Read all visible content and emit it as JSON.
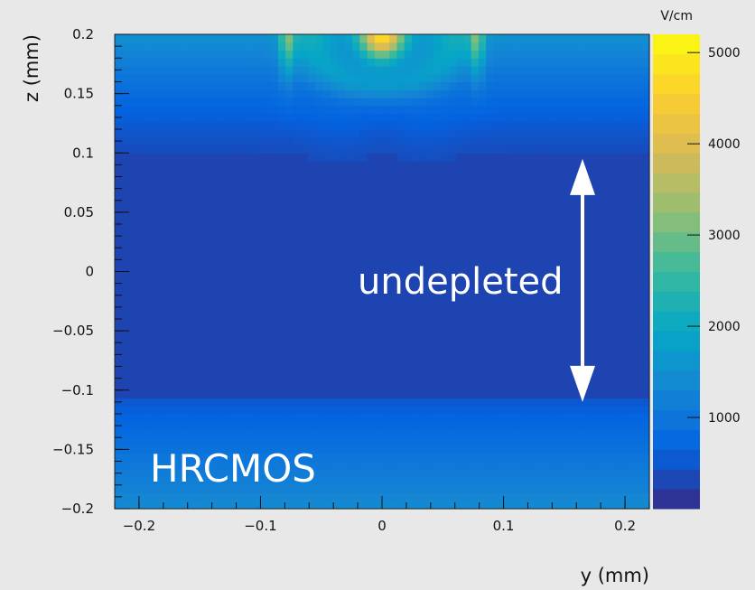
{
  "chart_data": {
    "type": "heatmap",
    "title": "",
    "xlabel": "y (mm)",
    "ylabel": "z (mm)",
    "colorbar_unit": "V/cm",
    "xlim": [
      -0.22,
      0.22
    ],
    "ylim": [
      -0.2,
      0.2
    ],
    "zlim": [
      0,
      5200
    ],
    "x_ticks": [
      -0.2,
      -0.1,
      0,
      0.1,
      0.2
    ],
    "x_tick_labels": [
      "−0.2",
      "−0.1",
      "0",
      "0.1",
      "0.2"
    ],
    "y_ticks": [
      0.2,
      0.15,
      0.1,
      0.05,
      0,
      -0.05,
      -0.1,
      -0.15,
      -0.2
    ],
    "y_tick_labels": [
      "0.2",
      "0.15",
      "0.1",
      "0.05",
      "0",
      "−0.05",
      "−0.1",
      "−0.15",
      "−0.2"
    ],
    "colorbar_ticks": [
      5000,
      4000,
      3000,
      2000,
      1000
    ],
    "colorbar_tick_labels": [
      "5000",
      "4000",
      "3000",
      "2000",
      "1000"
    ],
    "annotations": [
      {
        "text": "undepleted",
        "color": "#ffffff"
      },
      {
        "text": "HRCMOS",
        "color": "#ffffff"
      }
    ],
    "undepleted_region_z": [
      -0.11,
      0.095
    ],
    "field_description": {
      "undepleted_field": 300,
      "top_surface_field": 1500,
      "bottom_surface_field": 1300,
      "peak_field": 5000
    },
    "grid": false,
    "colormap": [
      "#352a87",
      "#0363e1",
      "#1485d4",
      "#06a7c6",
      "#38b99e",
      "#92bf73",
      "#d9ba56",
      "#fcce2e",
      "#f9fb0e"
    ]
  }
}
